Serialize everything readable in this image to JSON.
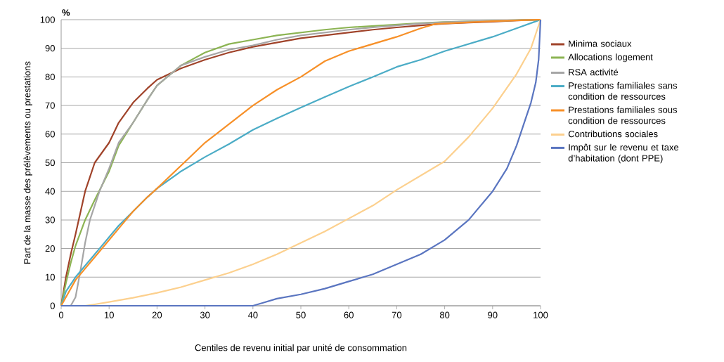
{
  "chart_data": {
    "type": "line",
    "xlabel": "Centiles de revenu initial par unité de consommation",
    "ylabel": "Part de la masse des prélèvements ou prestations",
    "annotations": [
      "%"
    ],
    "xlim": [
      0,
      100
    ],
    "ylim": [
      0,
      100
    ],
    "xticks": [
      0,
      10,
      20,
      30,
      40,
      50,
      60,
      70,
      80,
      90,
      100
    ],
    "yticks": [
      0,
      10,
      20,
      30,
      40,
      50,
      60,
      70,
      80,
      90,
      100
    ],
    "grid": "y",
    "legend": "right",
    "marker": "none",
    "line_style": "solid",
    "series": [
      {
        "name": "Minima sociaux",
        "color": "#a0432a",
        "x": [
          0,
          1,
          2,
          3,
          5,
          7,
          10,
          12,
          15,
          18,
          20,
          25,
          30,
          35,
          40,
          45,
          50,
          55,
          60,
          65,
          70,
          75,
          80,
          85,
          90,
          95,
          100
        ],
        "values": [
          0,
          10,
          18,
          25,
          40,
          50,
          57,
          64,
          71,
          76,
          79,
          83,
          86,
          88.5,
          90.5,
          92,
          93.5,
          94.5,
          95.5,
          96.5,
          97.3,
          98,
          98.6,
          99,
          99.3,
          99.7,
          100
        ]
      },
      {
        "name": "Allocations logement",
        "color": "#8cb453",
        "x": [
          0,
          1,
          2,
          3,
          5,
          7,
          10,
          12,
          15,
          18,
          20,
          25,
          30,
          35,
          40,
          45,
          50,
          55,
          60,
          65,
          70,
          75,
          80,
          90,
          100
        ],
        "values": [
          0,
          8,
          15,
          21,
          30,
          37,
          47,
          56,
          64,
          72,
          77,
          84,
          88.5,
          91.5,
          93,
          94.5,
          95.5,
          96.5,
          97.3,
          97.8,
          98.3,
          98.8,
          99.2,
          99.6,
          100
        ]
      },
      {
        "name": "RSA activité",
        "color": "#a6a6a6",
        "x": [
          0,
          2,
          3,
          4,
          5,
          6,
          8,
          10,
          12,
          15,
          18,
          20,
          25,
          30,
          35,
          40,
          45,
          50,
          55,
          60,
          65,
          70,
          75,
          80,
          90,
          100
        ],
        "values": [
          0,
          0,
          3,
          12,
          22,
          30,
          40,
          48,
          57,
          64,
          72,
          77,
          84,
          87,
          89.5,
          91,
          93,
          94.5,
          95.5,
          96.5,
          97.3,
          98,
          98.7,
          99.1,
          99.6,
          100
        ]
      },
      {
        "name": "Prestations familiales sans condition de ressources",
        "color": "#4bacc6",
        "x": [
          0,
          1,
          3,
          5,
          8,
          10,
          12,
          15,
          18,
          20,
          25,
          30,
          35,
          40,
          45,
          50,
          55,
          60,
          65,
          70,
          75,
          80,
          85,
          90,
          95,
          100
        ],
        "values": [
          0,
          5,
          10,
          14,
          20,
          24,
          28,
          33,
          38,
          41,
          47,
          52,
          56.5,
          61.5,
          65.5,
          69.3,
          73,
          76.6,
          80,
          83.5,
          86,
          89,
          91.5,
          94,
          97,
          100
        ]
      },
      {
        "name": "Prestations familiales sous condition de ressources",
        "color": "#f79028",
        "x": [
          0,
          1,
          3,
          5,
          8,
          10,
          12,
          15,
          18,
          20,
          25,
          30,
          35,
          40,
          45,
          50,
          55,
          60,
          65,
          70,
          75,
          78,
          80,
          90,
          100
        ],
        "values": [
          0,
          3,
          9,
          13,
          19,
          23,
          27,
          33,
          38,
          41,
          49,
          57,
          63.5,
          70,
          75.5,
          80,
          85.5,
          89,
          91.5,
          94,
          97,
          98.5,
          98.7,
          99.5,
          100
        ]
      },
      {
        "name": "Contributions sociales",
        "color": "#fcd08e",
        "x": [
          0,
          5,
          7,
          10,
          15,
          20,
          25,
          30,
          35,
          40,
          45,
          50,
          55,
          60,
          65,
          70,
          75,
          80,
          85,
          90,
          95,
          98,
          100
        ],
        "values": [
          0,
          0,
          0.5,
          1.3,
          2.8,
          4.5,
          6.5,
          9,
          11.5,
          14.5,
          18,
          22,
          26,
          30.5,
          35,
          40.5,
          45.5,
          50.5,
          59,
          69,
          81,
          90,
          100
        ]
      },
      {
        "name": "Impôt sur le revenu et taxe d’habitation (dont PPE)",
        "color": "#5a75c0",
        "x": [
          0,
          40,
          42,
          45,
          50,
          55,
          60,
          65,
          70,
          75,
          80,
          85,
          90,
          93,
          95,
          97,
          98,
          99,
          99.6,
          100
        ],
        "values": [
          0,
          0,
          1,
          2.5,
          4,
          6,
          8.5,
          11,
          14.5,
          18,
          23,
          30,
          40,
          48,
          56,
          66,
          71,
          78,
          86,
          100
        ]
      }
    ]
  }
}
